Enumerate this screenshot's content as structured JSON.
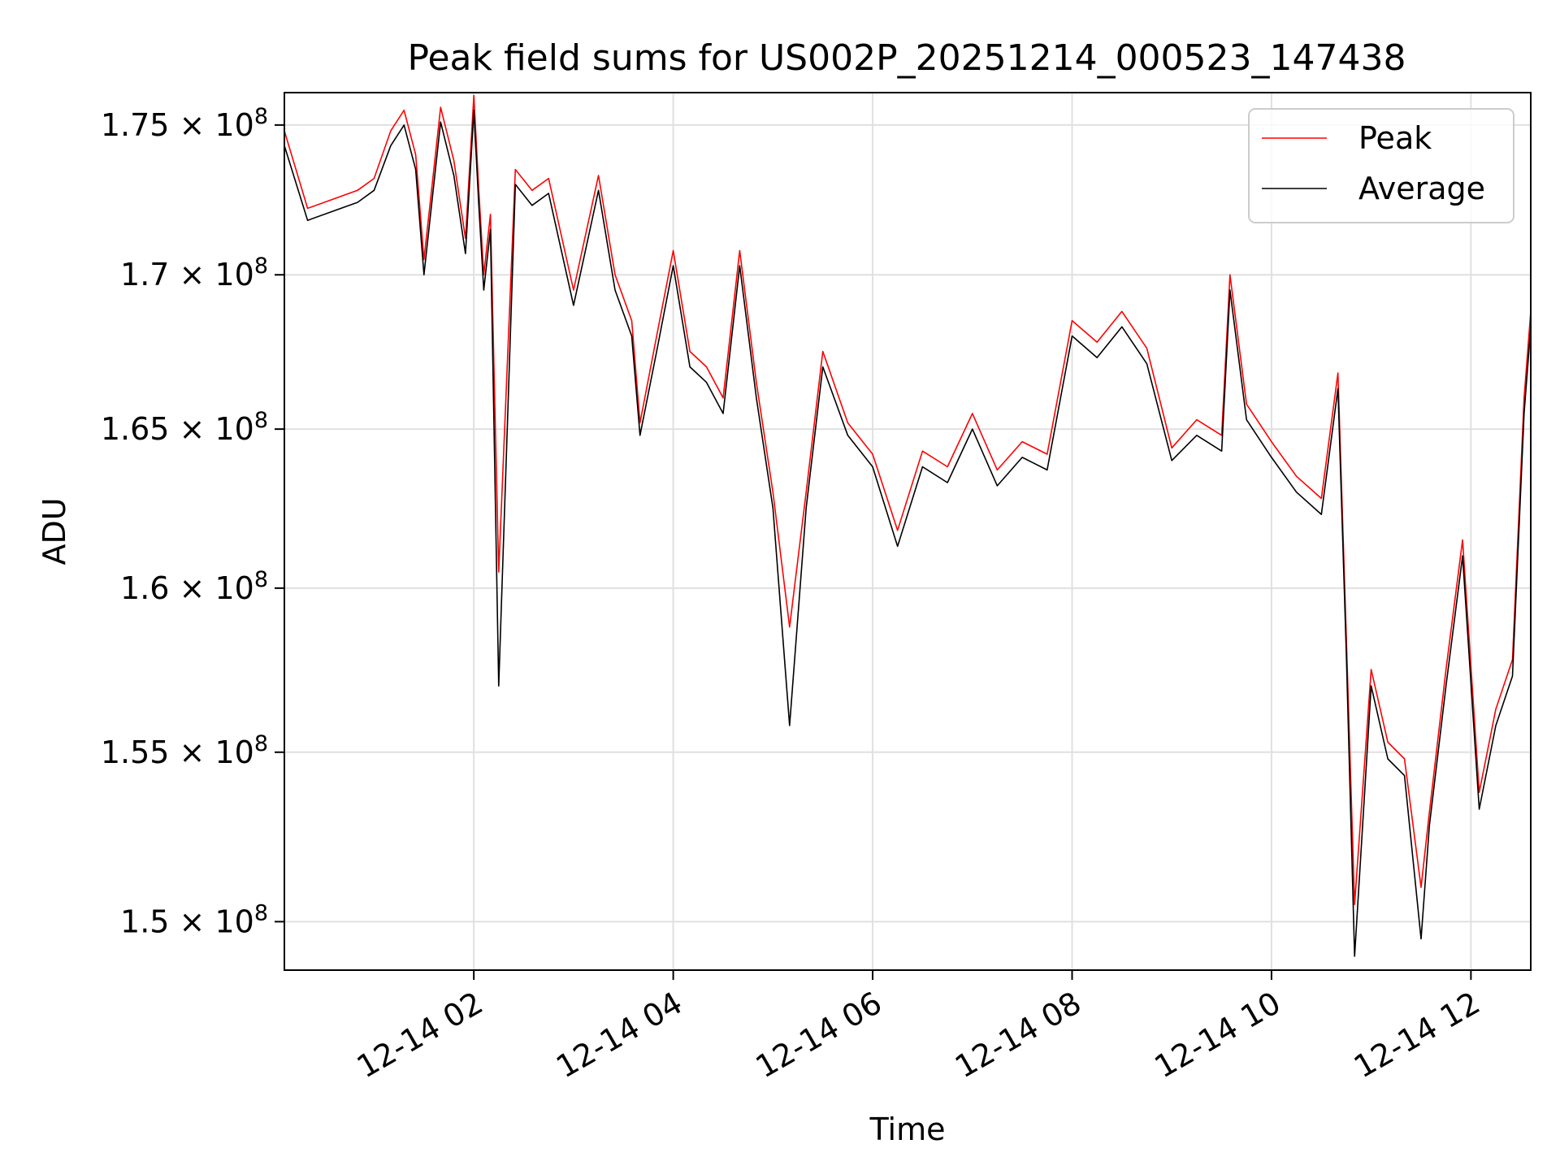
{
  "chart_data": {
    "type": "line",
    "title": "Peak field sums for US002P_20251214_000523_147438",
    "xlabel": "Time",
    "ylabel": "ADU",
    "x_range": [
      "2025-12-14 00:06",
      "2025-12-14 12:36"
    ],
    "x_ticks": [
      {
        "label": "12-14 02",
        "time": "2025-12-14 02:00"
      },
      {
        "label": "12-14 04",
        "time": "2025-12-14 04:00"
      },
      {
        "label": "12-14 06",
        "time": "2025-12-14 06:00"
      },
      {
        "label": "12-14 08",
        "time": "2025-12-14 08:00"
      },
      {
        "label": "12-14 10",
        "time": "2025-12-14 10:00"
      },
      {
        "label": "12-14 12",
        "time": "2025-12-14 12:00"
      }
    ],
    "ylim": [
      148600000,
      176100000
    ],
    "y_scale": "log",
    "y_ticks": [
      {
        "mantissa": "1.5",
        "value": 150000000
      },
      {
        "mantissa": "1.55",
        "value": 155000000
      },
      {
        "mantissa": "1.6",
        "value": 160000000
      },
      {
        "mantissa": "1.65",
        "value": 165000000
      },
      {
        "mantissa": "1.7",
        "value": 170000000
      },
      {
        "mantissa": "1.75",
        "value": 175000000
      }
    ],
    "y_tick_suffix": "× 10",
    "y_tick_exp": "8",
    "grid": true,
    "legend_position": "top-right",
    "series": [
      {
        "name": "Peak",
        "color": "#ff0000",
        "x": [
          "2025-12-14 00:06",
          "2025-12-14 00:20",
          "2025-12-14 00:35",
          "2025-12-14 00:50",
          "2025-12-14 01:00",
          "2025-12-14 01:10",
          "2025-12-14 01:18",
          "2025-12-14 01:25",
          "2025-12-14 01:30",
          "2025-12-14 01:40",
          "2025-12-14 01:48",
          "2025-12-14 01:55",
          "2025-12-14 02:00",
          "2025-12-14 02:03",
          "2025-12-14 02:06",
          "2025-12-14 02:10",
          "2025-12-14 02:15",
          "2025-12-14 02:25",
          "2025-12-14 02:35",
          "2025-12-14 02:45",
          "2025-12-14 03:00",
          "2025-12-14 03:15",
          "2025-12-14 03:25",
          "2025-12-14 03:35",
          "2025-12-14 03:40",
          "2025-12-14 03:50",
          "2025-12-14 04:00",
          "2025-12-14 04:10",
          "2025-12-14 04:20",
          "2025-12-14 04:30",
          "2025-12-14 04:40",
          "2025-12-14 04:50",
          "2025-12-14 05:00",
          "2025-12-14 05:10",
          "2025-12-14 05:20",
          "2025-12-14 05:30",
          "2025-12-14 05:45",
          "2025-12-14 06:00",
          "2025-12-14 06:15",
          "2025-12-14 06:30",
          "2025-12-14 06:45",
          "2025-12-14 07:00",
          "2025-12-14 07:15",
          "2025-12-14 07:30",
          "2025-12-14 07:45",
          "2025-12-14 08:00",
          "2025-12-14 08:15",
          "2025-12-14 08:30",
          "2025-12-14 08:45",
          "2025-12-14 09:00",
          "2025-12-14 09:15",
          "2025-12-14 09:30",
          "2025-12-14 09:35",
          "2025-12-14 09:45",
          "2025-12-14 10:00",
          "2025-12-14 10:15",
          "2025-12-14 10:30",
          "2025-12-14 10:40",
          "2025-12-14 10:45",
          "2025-12-14 10:50",
          "2025-12-14 11:00",
          "2025-12-14 11:10",
          "2025-12-14 11:20",
          "2025-12-14 11:30",
          "2025-12-14 11:35",
          "2025-12-14 11:45",
          "2025-12-14 11:55",
          "2025-12-14 12:05",
          "2025-12-14 12:15",
          "2025-12-14 12:25",
          "2025-12-14 12:32",
          "2025-12-14 12:36"
        ],
        "y": [
          174800000,
          172200000,
          172500000,
          172800000,
          173200000,
          174800000,
          175500000,
          174000000,
          170500000,
          175600000,
          173800000,
          171200000,
          176000000,
          172800000,
          170000000,
          172000000,
          160500000,
          173500000,
          172800000,
          173200000,
          169500000,
          173300000,
          170000000,
          168500000,
          165200000,
          168000000,
          170800000,
          167500000,
          167000000,
          166000000,
          170800000,
          166500000,
          163000000,
          158800000,
          163000000,
          167500000,
          165200000,
          164200000,
          161800000,
          164300000,
          163800000,
          165500000,
          163700000,
          164600000,
          164200000,
          168500000,
          167800000,
          168800000,
          167600000,
          164400000,
          165300000,
          164800000,
          170000000,
          165800000,
          164600000,
          163500000,
          162800000,
          166800000,
          158500000,
          150500000,
          157500000,
          155300000,
          154800000,
          151000000,
          153200000,
          157500000,
          161500000,
          153800000,
          156300000,
          157800000,
          166000000,
          168800000
        ]
      },
      {
        "name": "Average",
        "color": "#000000",
        "x": [
          "2025-12-14 00:06",
          "2025-12-14 00:20",
          "2025-12-14 00:35",
          "2025-12-14 00:50",
          "2025-12-14 01:00",
          "2025-12-14 01:10",
          "2025-12-14 01:18",
          "2025-12-14 01:25",
          "2025-12-14 01:30",
          "2025-12-14 01:40",
          "2025-12-14 01:48",
          "2025-12-14 01:55",
          "2025-12-14 02:00",
          "2025-12-14 02:03",
          "2025-12-14 02:06",
          "2025-12-14 02:10",
          "2025-12-14 02:15",
          "2025-12-14 02:25",
          "2025-12-14 02:35",
          "2025-12-14 02:45",
          "2025-12-14 03:00",
          "2025-12-14 03:15",
          "2025-12-14 03:25",
          "2025-12-14 03:35",
          "2025-12-14 03:40",
          "2025-12-14 03:50",
          "2025-12-14 04:00",
          "2025-12-14 04:10",
          "2025-12-14 04:20",
          "2025-12-14 04:30",
          "2025-12-14 04:40",
          "2025-12-14 04:50",
          "2025-12-14 05:00",
          "2025-12-14 05:10",
          "2025-12-14 05:20",
          "2025-12-14 05:30",
          "2025-12-14 05:45",
          "2025-12-14 06:00",
          "2025-12-14 06:15",
          "2025-12-14 06:30",
          "2025-12-14 06:45",
          "2025-12-14 07:00",
          "2025-12-14 07:15",
          "2025-12-14 07:30",
          "2025-12-14 07:45",
          "2025-12-14 08:00",
          "2025-12-14 08:15",
          "2025-12-14 08:30",
          "2025-12-14 08:45",
          "2025-12-14 09:00",
          "2025-12-14 09:15",
          "2025-12-14 09:30",
          "2025-12-14 09:35",
          "2025-12-14 09:45",
          "2025-12-14 10:00",
          "2025-12-14 10:15",
          "2025-12-14 10:30",
          "2025-12-14 10:40",
          "2025-12-14 10:45",
          "2025-12-14 10:50",
          "2025-12-14 11:00",
          "2025-12-14 11:10",
          "2025-12-14 11:20",
          "2025-12-14 11:30",
          "2025-12-14 11:35",
          "2025-12-14 11:45",
          "2025-12-14 11:55",
          "2025-12-14 12:05",
          "2025-12-14 12:15",
          "2025-12-14 12:25",
          "2025-12-14 12:32",
          "2025-12-14 12:36"
        ],
        "y": [
          174300000,
          171800000,
          172100000,
          172400000,
          172800000,
          174300000,
          175000000,
          173500000,
          170000000,
          175100000,
          173300000,
          170700000,
          175500000,
          172300000,
          169500000,
          171500000,
          157000000,
          173000000,
          172300000,
          172700000,
          169000000,
          172800000,
          169500000,
          168000000,
          164800000,
          167500000,
          170300000,
          167000000,
          166500000,
          165500000,
          170300000,
          166000000,
          162500000,
          155800000,
          162500000,
          167000000,
          164800000,
          163800000,
          161300000,
          163800000,
          163300000,
          165000000,
          163200000,
          164100000,
          163700000,
          168000000,
          167300000,
          168300000,
          167100000,
          164000000,
          164800000,
          164300000,
          169500000,
          165300000,
          164100000,
          163000000,
          162300000,
          166300000,
          158000000,
          149000000,
          157000000,
          154800000,
          154300000,
          149500000,
          152800000,
          157000000,
          161000000,
          153300000,
          155800000,
          157300000,
          165500000,
          168300000
        ]
      }
    ]
  }
}
